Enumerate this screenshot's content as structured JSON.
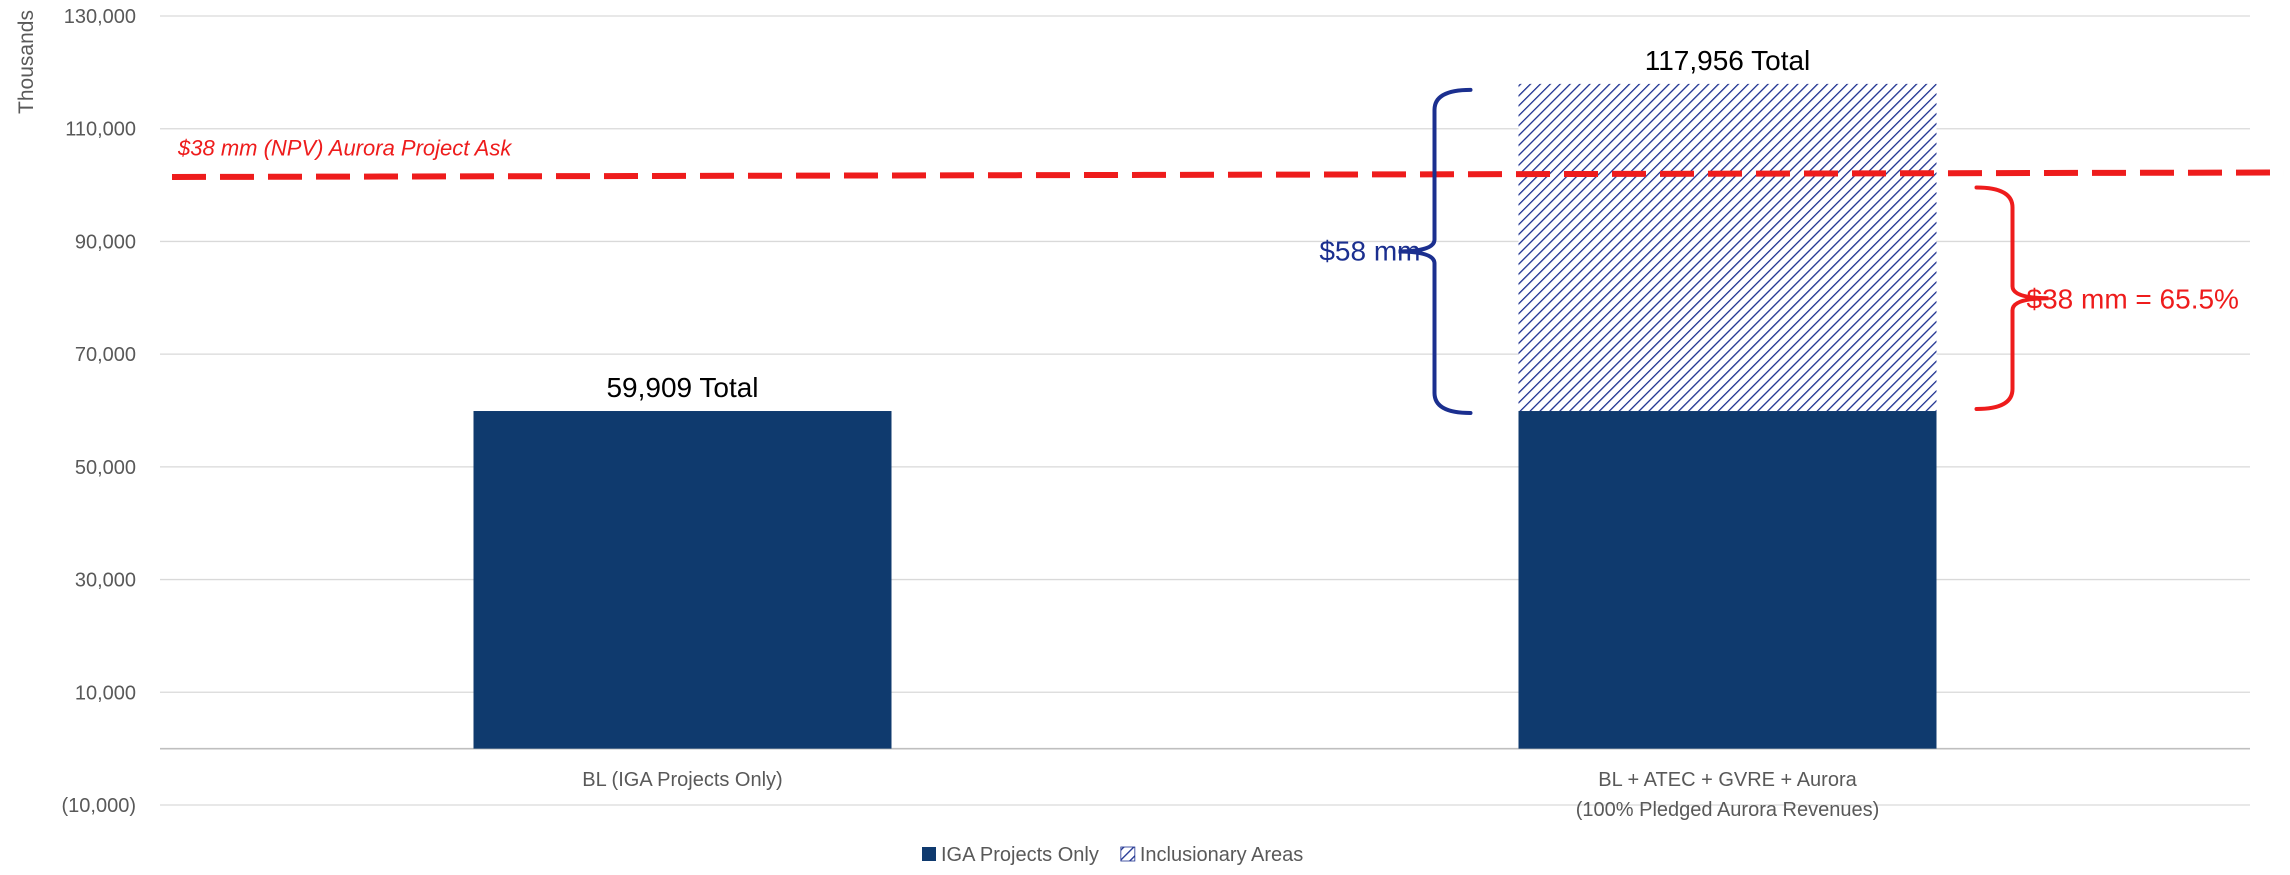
{
  "chart_data": {
    "type": "bar",
    "stacked": true,
    "ylabel": "Thousands",
    "ylim": [
      -10000,
      130000
    ],
    "yticks": [
      -10000,
      10000,
      30000,
      50000,
      70000,
      90000,
      110000,
      130000
    ],
    "ytick_labels": [
      "(10,000)",
      "10,000",
      "30,000",
      "50,000",
      "70,000",
      "90,000",
      "110,000",
      "130,000"
    ],
    "grid": true,
    "categories": [
      [
        "BL (IGA Projects Only)"
      ],
      [
        "BL + ATEC + GVRE + Aurora",
        "(100% Pledged Aurora Revenues)"
      ]
    ],
    "series": [
      {
        "name": "IGA Projects Only",
        "values": [
          59909,
          59909
        ],
        "color": "#0f3a6e",
        "pattern": "solid"
      },
      {
        "name": "Inclusionary Areas",
        "values": [
          0,
          58047
        ],
        "color": "#1b2f8f",
        "pattern": "hatch"
      }
    ],
    "total_labels": [
      "59,909 Total",
      "117,956 Total"
    ],
    "legend_position": "bottom-center",
    "reference_line": {
      "label": "$38 mm (NPV) Aurora Project Ask",
      "value": 101700,
      "color": "#ee1c1c"
    },
    "annotations": [
      {
        "text": "$58 mm",
        "color": "#1b2f8f",
        "from": 59909,
        "to": 117956
      },
      {
        "text": "$38 mm = 65.5%",
        "color": "#ee1c1c",
        "from": 59909,
        "to": 101700
      }
    ]
  }
}
